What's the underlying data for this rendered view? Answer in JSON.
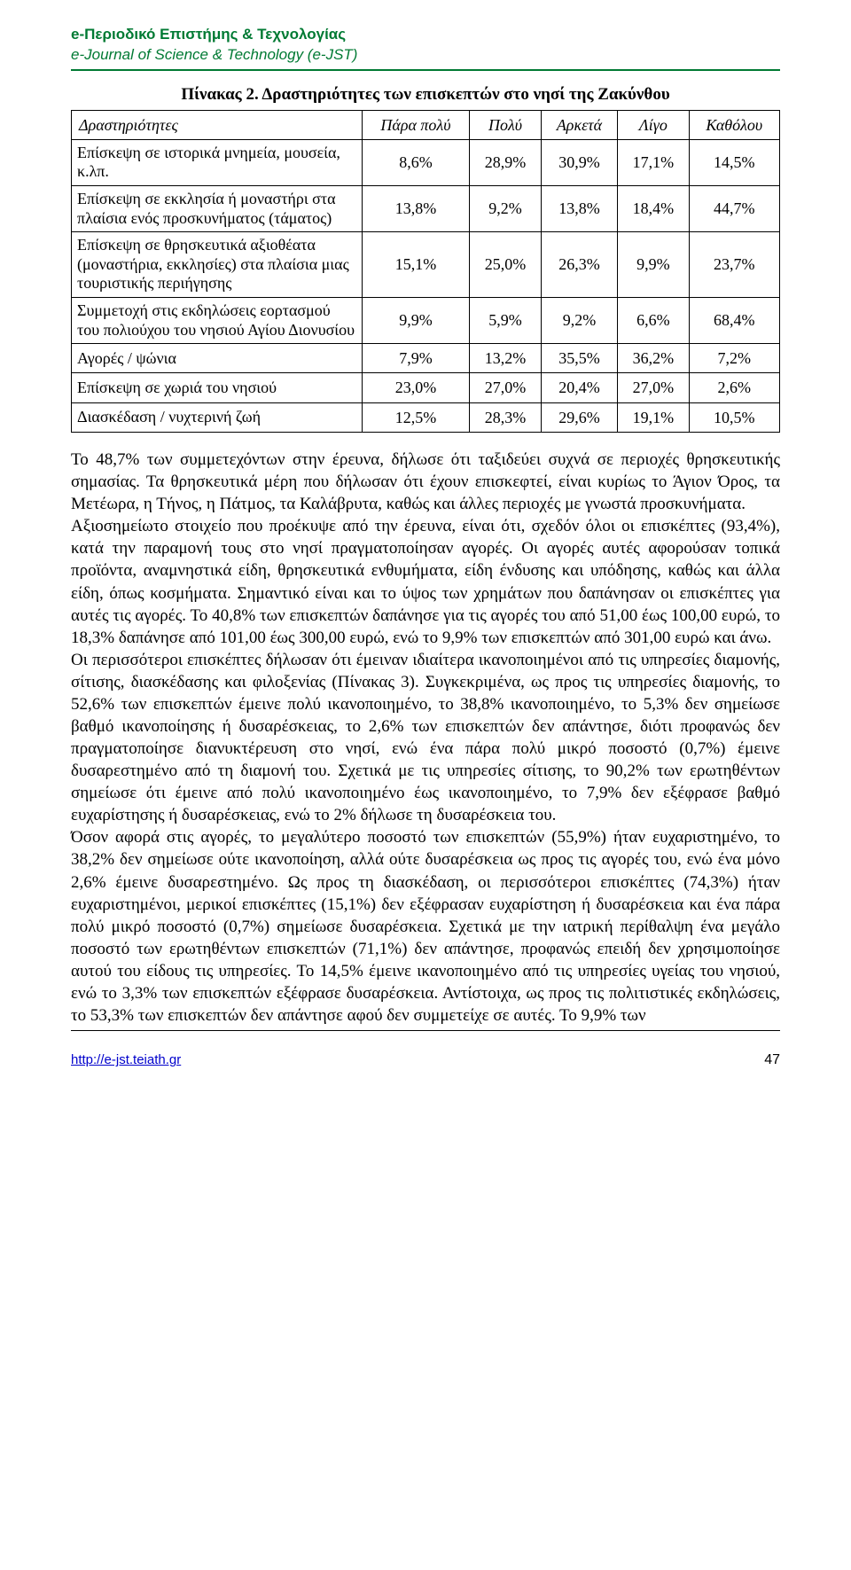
{
  "header": {
    "title_gr": "e-Περιοδικό Επιστήμης & Τεχνολογίας",
    "title_en": "e-Journal of Science & Technology (e-JST)"
  },
  "table": {
    "title": "Πίνακας 2. Δραστηριότητες των επισκεπτών στο νησί της Ζακύνθου",
    "columns": [
      "Δραστηριότητες",
      "Πάρα πολύ",
      "Πολύ",
      "Αρκετά",
      "Λίγο",
      "Καθόλου"
    ],
    "rows": [
      {
        "label": "Επίσκεψη σε ιστορικά μνημεία, μουσεία, κ.λπ.",
        "vals": [
          "8,6%",
          "28,9%",
          "30,9%",
          "17,1%",
          "14,5%"
        ]
      },
      {
        "label": "Επίσκεψη σε εκκλησία ή μοναστήρι στα πλαίσια ενός προσκυνήματος (τάματος)",
        "vals": [
          "13,8%",
          "9,2%",
          "13,8%",
          "18,4%",
          "44,7%"
        ]
      },
      {
        "label": "Επίσκεψη σε θρησκευτικά αξιοθέατα (μοναστήρια, εκκλησίες) στα πλαίσια μιας τουριστικής περιήγησης",
        "vals": [
          "15,1%",
          "25,0%",
          "26,3%",
          "9,9%",
          "23,7%"
        ]
      },
      {
        "label": "Συμμετοχή στις εκδηλώσεις εορτασμού του πολιούχου του νησιού Αγίου Διονυσίου",
        "vals": [
          "9,9%",
          "5,9%",
          "9,2%",
          "6,6%",
          "68,4%"
        ]
      },
      {
        "label": "Αγορές / ψώνια",
        "vals": [
          "7,9%",
          "13,2%",
          "35,5%",
          "36,2%",
          "7,2%"
        ]
      },
      {
        "label": "Επίσκεψη σε χωριά του νησιού",
        "vals": [
          "23,0%",
          "27,0%",
          "20,4%",
          "27,0%",
          "2,6%"
        ]
      },
      {
        "label": "Διασκέδαση / νυχτερινή ζωή",
        "vals": [
          "12,5%",
          "28,3%",
          "29,6%",
          "19,1%",
          "10,5%"
        ]
      }
    ]
  },
  "body": {
    "p1": "Το 48,7% των συμμετεχόντων στην έρευνα, δήλωσε ότι ταξιδεύει συχνά σε περιοχές θρησκευτικής σημασίας. Τα θρησκευτικά μέρη που δήλωσαν ότι έχουν επισκεφτεί, είναι κυρίως το Άγιον Όρος, τα Μετέωρα, η Τήνος, η Πάτμος, τα Καλάβρυτα, καθώς και άλλες περιοχές με γνωστά προσκυνήματα.",
    "p2": "Αξιοσημείωτο στοιχείο που προέκυψε από την έρευνα, είναι ότι, σχεδόν όλοι οι επισκέπτες (93,4%), κατά την παραμονή τους στο νησί πραγματοποίησαν αγορές. Οι αγορές αυτές αφορούσαν τοπικά προϊόντα, αναμνηστικά είδη, θρησκευτικά ενθυμήματα, είδη ένδυσης και υπόδησης, καθώς και άλλα είδη, όπως κοσμήματα. Σημαντικό είναι και το ύψος των χρημάτων που δαπάνησαν οι επισκέπτες για αυτές τις αγορές. Το 40,8% των επισκεπτών δαπάνησε για τις αγορές του από 51,00 έως 100,00 ευρώ, το 18,3% δαπάνησε από 101,00 έως 300,00 ευρώ, ενώ το 9,9% των επισκεπτών από 301,00 ευρώ και άνω.",
    "p3": "Οι περισσότεροι επισκέπτες δήλωσαν ότι έμειναν ιδιαίτερα ικανοποιημένοι από τις υπηρεσίες διαμονής, σίτισης, διασκέδασης και φιλοξενίας (Πίνακας 3). Συγκεκριμένα, ως προς τις υπηρεσίες διαμονής, το 52,6% των επισκεπτών έμεινε πολύ ικανοποιημένο, το 38,8% ικανοποιημένο, το 5,3% δεν σημείωσε βαθμό ικανοποίησης ή δυσαρέσκειας, το 2,6% των επισκεπτών δεν απάντησε, διότι προφανώς δεν πραγματοποίησε διανυκτέρευση στο νησί, ενώ ένα πάρα πολύ μικρό ποσοστό (0,7%) έμεινε δυσαρεστημένο από τη διαμονή του. Σχετικά με τις υπηρεσίες σίτισης, το 90,2% των ερωτηθέντων σημείωσε ότι έμεινε από πολύ ικανοποιημένο έως ικανοποιημένο, το 7,9% δεν εξέφρασε βαθμό ευχαρίστησης ή δυσαρέσκειας, ενώ το 2% δήλωσε τη δυσαρέσκεια του.",
    "p4": "Όσον αφορά στις αγορές, το μεγαλύτερο ποσοστό των επισκεπτών (55,9%) ήταν ευχαριστημένο, το 38,2% δεν σημείωσε ούτε ικανοποίηση, αλλά ούτε δυσαρέσκεια ως προς τις αγορές του, ενώ ένα μόνο 2,6% έμεινε δυσαρεστημένο. Ως προς τη διασκέδαση, οι περισσότεροι επισκέπτες (74,3%) ήταν ευχαριστημένοι, μερικοί επισκέπτες (15,1%) δεν εξέφρασαν ευχαρίστηση ή δυσαρέσκεια και ένα πάρα πολύ μικρό ποσοστό (0,7%) σημείωσε δυσαρέσκεια. Σχετικά με την ιατρική περίθαλψη ένα μεγάλο ποσοστό των ερωτηθέντων επισκεπτών (71,1%) δεν απάντησε, προφανώς επειδή δεν χρησιμοποίησε αυτού του είδους τις υπηρεσίες. Το 14,5% έμεινε ικανοποιημένο από τις υπηρεσίες υγείας του νησιού, ενώ το 3,3% των επισκεπτών εξέφρασε δυσαρέσκεια. Αντίστοιχα, ως προς τις πολιτιστικές εκδηλώσεις, το 53,3% των επισκεπτών δεν απάντησε αφού δεν συμμετείχε σε αυτές. Το 9,9% των"
  },
  "footer": {
    "link": "http://e-jst.teiath.gr",
    "page": "47"
  }
}
